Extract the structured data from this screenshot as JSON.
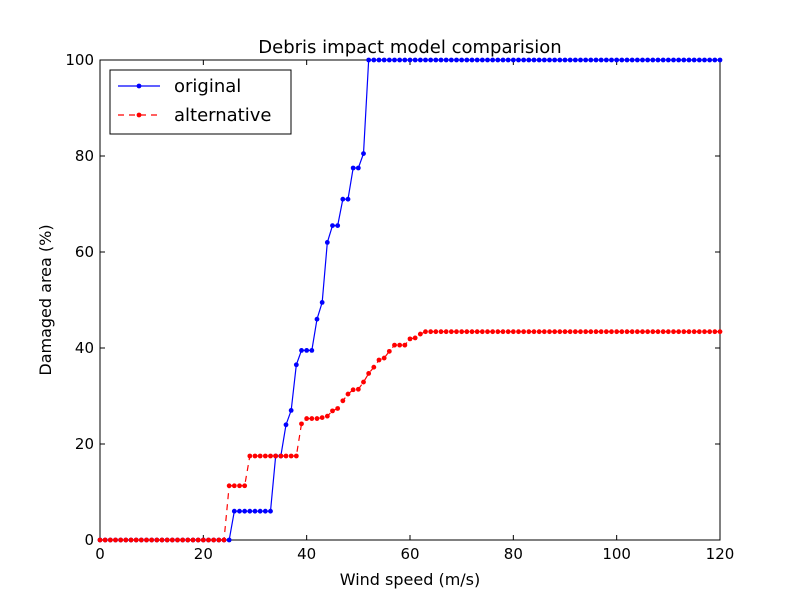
{
  "chart_data": {
    "type": "line",
    "title": "Debris impact model comparision",
    "xlabel": "Wind speed (m/s)",
    "ylabel": "Damaged area (%)",
    "xlim": [
      0,
      120
    ],
    "ylim": [
      0,
      100
    ],
    "xticks": [
      0,
      20,
      40,
      60,
      80,
      100,
      120
    ],
    "yticks": [
      0,
      20,
      40,
      60,
      80,
      100
    ],
    "grid": false,
    "legend_position": "top-left",
    "series": [
      {
        "name": "original",
        "color": "#0000ff",
        "line_style": "solid",
        "marker": "dot",
        "points": [
          [
            0,
            0
          ],
          [
            1,
            0
          ],
          [
            2,
            0
          ],
          [
            3,
            0
          ],
          [
            4,
            0
          ],
          [
            5,
            0
          ],
          [
            6,
            0
          ],
          [
            7,
            0
          ],
          [
            8,
            0
          ],
          [
            9,
            0
          ],
          [
            10,
            0
          ],
          [
            11,
            0
          ],
          [
            12,
            0
          ],
          [
            13,
            0
          ],
          [
            14,
            0
          ],
          [
            15,
            0
          ],
          [
            16,
            0
          ],
          [
            17,
            0
          ],
          [
            18,
            0
          ],
          [
            19,
            0
          ],
          [
            20,
            0
          ],
          [
            21,
            0
          ],
          [
            22,
            0
          ],
          [
            23,
            0
          ],
          [
            24,
            0
          ],
          [
            25,
            0
          ],
          [
            26,
            6
          ],
          [
            27,
            6
          ],
          [
            28,
            6
          ],
          [
            29,
            6
          ],
          [
            30,
            6
          ],
          [
            31,
            6
          ],
          [
            32,
            6
          ],
          [
            33,
            6
          ],
          [
            34,
            17.5
          ],
          [
            35,
            17.5
          ],
          [
            36,
            24
          ],
          [
            37,
            27
          ],
          [
            38,
            36.5
          ],
          [
            39,
            39.5
          ],
          [
            40,
            39.5
          ],
          [
            41,
            39.5
          ],
          [
            42,
            46
          ],
          [
            43,
            49.5
          ],
          [
            44,
            62
          ],
          [
            45,
            65.5
          ],
          [
            46,
            65.5
          ],
          [
            47,
            71
          ],
          [
            48,
            71
          ],
          [
            49,
            77.5
          ],
          [
            50,
            77.5
          ],
          [
            51,
            80.5
          ],
          [
            52,
            100
          ],
          [
            53,
            100
          ],
          [
            54,
            100
          ],
          [
            55,
            100
          ],
          [
            56,
            100
          ],
          [
            57,
            100
          ],
          [
            58,
            100
          ],
          [
            59,
            100
          ],
          [
            60,
            100
          ],
          [
            61,
            100
          ],
          [
            62,
            100
          ],
          [
            63,
            100
          ],
          [
            64,
            100
          ],
          [
            65,
            100
          ],
          [
            66,
            100
          ],
          [
            67,
            100
          ],
          [
            68,
            100
          ],
          [
            69,
            100
          ],
          [
            70,
            100
          ],
          [
            71,
            100
          ],
          [
            72,
            100
          ],
          [
            73,
            100
          ],
          [
            74,
            100
          ],
          [
            75,
            100
          ],
          [
            76,
            100
          ],
          [
            77,
            100
          ],
          [
            78,
            100
          ],
          [
            79,
            100
          ],
          [
            80,
            100
          ],
          [
            81,
            100
          ],
          [
            82,
            100
          ],
          [
            83,
            100
          ],
          [
            84,
            100
          ],
          [
            85,
            100
          ],
          [
            86,
            100
          ],
          [
            87,
            100
          ],
          [
            88,
            100
          ],
          [
            89,
            100
          ],
          [
            90,
            100
          ],
          [
            91,
            100
          ],
          [
            92,
            100
          ],
          [
            93,
            100
          ],
          [
            94,
            100
          ],
          [
            95,
            100
          ],
          [
            96,
            100
          ],
          [
            97,
            100
          ],
          [
            98,
            100
          ],
          [
            99,
            100
          ],
          [
            100,
            100
          ],
          [
            101,
            100
          ],
          [
            102,
            100
          ],
          [
            103,
            100
          ],
          [
            104,
            100
          ],
          [
            105,
            100
          ],
          [
            106,
            100
          ],
          [
            107,
            100
          ],
          [
            108,
            100
          ],
          [
            109,
            100
          ],
          [
            110,
            100
          ],
          [
            111,
            100
          ],
          [
            112,
            100
          ],
          [
            113,
            100
          ],
          [
            114,
            100
          ],
          [
            115,
            100
          ],
          [
            116,
            100
          ],
          [
            117,
            100
          ],
          [
            118,
            100
          ],
          [
            119,
            100
          ],
          [
            120,
            100
          ]
        ]
      },
      {
        "name": "alternative",
        "color": "#ff0000",
        "line_style": "dashed",
        "marker": "dot",
        "points": [
          [
            0,
            0
          ],
          [
            1,
            0
          ],
          [
            2,
            0
          ],
          [
            3,
            0
          ],
          [
            4,
            0
          ],
          [
            5,
            0
          ],
          [
            6,
            0
          ],
          [
            7,
            0
          ],
          [
            8,
            0
          ],
          [
            9,
            0
          ],
          [
            10,
            0
          ],
          [
            11,
            0
          ],
          [
            12,
            0
          ],
          [
            13,
            0
          ],
          [
            14,
            0
          ],
          [
            15,
            0
          ],
          [
            16,
            0
          ],
          [
            17,
            0
          ],
          [
            18,
            0
          ],
          [
            19,
            0
          ],
          [
            20,
            0
          ],
          [
            21,
            0
          ],
          [
            22,
            0
          ],
          [
            23,
            0
          ],
          [
            24,
            0
          ],
          [
            25,
            11.3
          ],
          [
            26,
            11.3
          ],
          [
            27,
            11.3
          ],
          [
            28,
            11.3
          ],
          [
            29,
            17.5
          ],
          [
            30,
            17.5
          ],
          [
            31,
            17.5
          ],
          [
            32,
            17.5
          ],
          [
            33,
            17.5
          ],
          [
            34,
            17.5
          ],
          [
            35,
            17.5
          ],
          [
            36,
            17.5
          ],
          [
            37,
            17.5
          ],
          [
            38,
            17.5
          ],
          [
            39,
            24.2
          ],
          [
            40,
            25.3
          ],
          [
            41,
            25.3
          ],
          [
            42,
            25.3
          ],
          [
            43,
            25.5
          ],
          [
            44,
            25.8
          ],
          [
            45,
            26.9
          ],
          [
            46,
            27.4
          ],
          [
            47,
            29
          ],
          [
            48,
            30.4
          ],
          [
            49,
            31.3
          ],
          [
            50,
            31.4
          ],
          [
            51,
            32.9
          ],
          [
            52,
            34.7
          ],
          [
            53,
            36
          ],
          [
            54,
            37.5
          ],
          [
            55,
            37.9
          ],
          [
            56,
            39.3
          ],
          [
            57,
            40.6
          ],
          [
            58,
            40.6
          ],
          [
            59,
            40.6
          ],
          [
            60,
            41.9
          ],
          [
            61,
            42.1
          ],
          [
            62,
            42.9
          ],
          [
            63,
            43.4
          ],
          [
            64,
            43.4
          ],
          [
            65,
            43.4
          ],
          [
            66,
            43.4
          ],
          [
            67,
            43.4
          ],
          [
            68,
            43.4
          ],
          [
            69,
            43.4
          ],
          [
            70,
            43.4
          ],
          [
            71,
            43.4
          ],
          [
            72,
            43.4
          ],
          [
            73,
            43.4
          ],
          [
            74,
            43.4
          ],
          [
            75,
            43.4
          ],
          [
            76,
            43.4
          ],
          [
            77,
            43.4
          ],
          [
            78,
            43.4
          ],
          [
            79,
            43.4
          ],
          [
            80,
            43.4
          ],
          [
            81,
            43.4
          ],
          [
            82,
            43.4
          ],
          [
            83,
            43.4
          ],
          [
            84,
            43.4
          ],
          [
            85,
            43.4
          ],
          [
            86,
            43.4
          ],
          [
            87,
            43.4
          ],
          [
            88,
            43.4
          ],
          [
            89,
            43.4
          ],
          [
            90,
            43.4
          ],
          [
            91,
            43.4
          ],
          [
            92,
            43.4
          ],
          [
            93,
            43.4
          ],
          [
            94,
            43.4
          ],
          [
            95,
            43.4
          ],
          [
            96,
            43.4
          ],
          [
            97,
            43.4
          ],
          [
            98,
            43.4
          ],
          [
            99,
            43.4
          ],
          [
            100,
            43.4
          ],
          [
            101,
            43.4
          ],
          [
            102,
            43.4
          ],
          [
            103,
            43.4
          ],
          [
            104,
            43.4
          ],
          [
            105,
            43.4
          ],
          [
            106,
            43.4
          ],
          [
            107,
            43.4
          ],
          [
            108,
            43.4
          ],
          [
            109,
            43.4
          ],
          [
            110,
            43.4
          ],
          [
            111,
            43.4
          ],
          [
            112,
            43.4
          ],
          [
            113,
            43.4
          ],
          [
            114,
            43.4
          ],
          [
            115,
            43.4
          ],
          [
            116,
            43.4
          ],
          [
            117,
            43.4
          ],
          [
            118,
            43.4
          ],
          [
            119,
            43.4
          ],
          [
            120,
            43.4
          ]
        ]
      }
    ]
  }
}
